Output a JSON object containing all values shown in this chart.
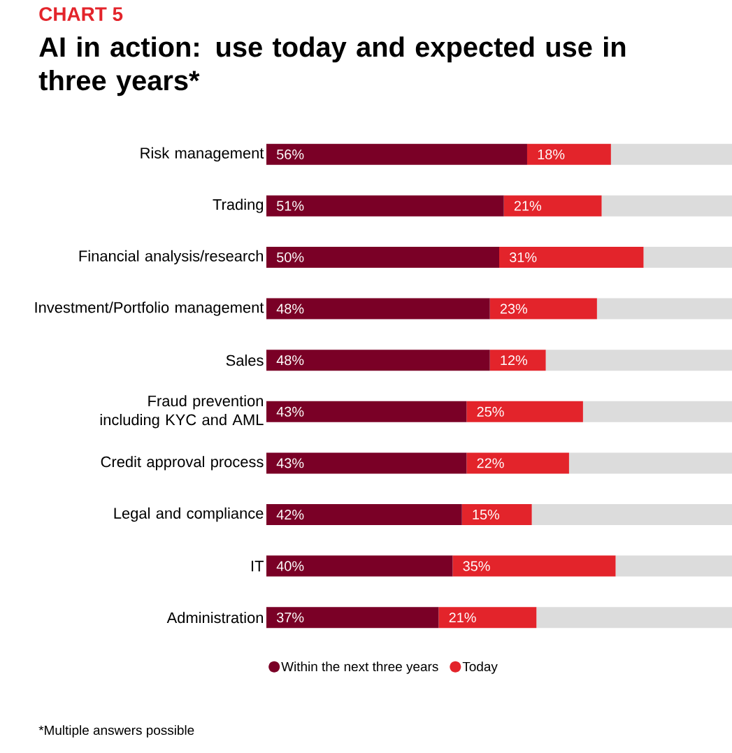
{
  "chart_data": {
    "type": "bar",
    "orientation": "horizontal",
    "stacked": true,
    "title": "AI in action: use today and expected use in three years*",
    "annotations": [
      "CHART 5",
      "*Multiple answers possible"
    ],
    "categories": [
      "Risk management",
      "Trading",
      "Financial analysis/research",
      "Investment/Portfolio management",
      "Sales",
      "Fraud prevention including KYC and AML",
      "Credit approval process",
      "Legal and compliance",
      "IT",
      "Administration"
    ],
    "series": [
      {
        "name": "Within the next three years",
        "color": "#7a0026",
        "values": [
          56,
          51,
          50,
          48,
          48,
          43,
          43,
          42,
          40,
          37
        ],
        "value_labels": [
          "56%",
          "51%",
          "50%",
          "48%",
          "48%",
          "43%",
          "43%",
          "42%",
          "40%",
          "37%"
        ]
      },
      {
        "name": "Today",
        "color": "#e3242b",
        "values": [
          18,
          21,
          31,
          23,
          12,
          25,
          22,
          15,
          35,
          21
        ],
        "value_labels": [
          "18%",
          "21%",
          "31%",
          "23%",
          "12%",
          "25%",
          "22%",
          "15%",
          "35%",
          "21%"
        ]
      },
      {
        "color": "#dcdcdc",
        "values": [
          26,
          28,
          19,
          29,
          40,
          32,
          35,
          43,
          25,
          42
        ]
      }
    ],
    "xlim": [
      0,
      100
    ],
    "tick_labels": "y",
    "legend": "bottom"
  }
}
